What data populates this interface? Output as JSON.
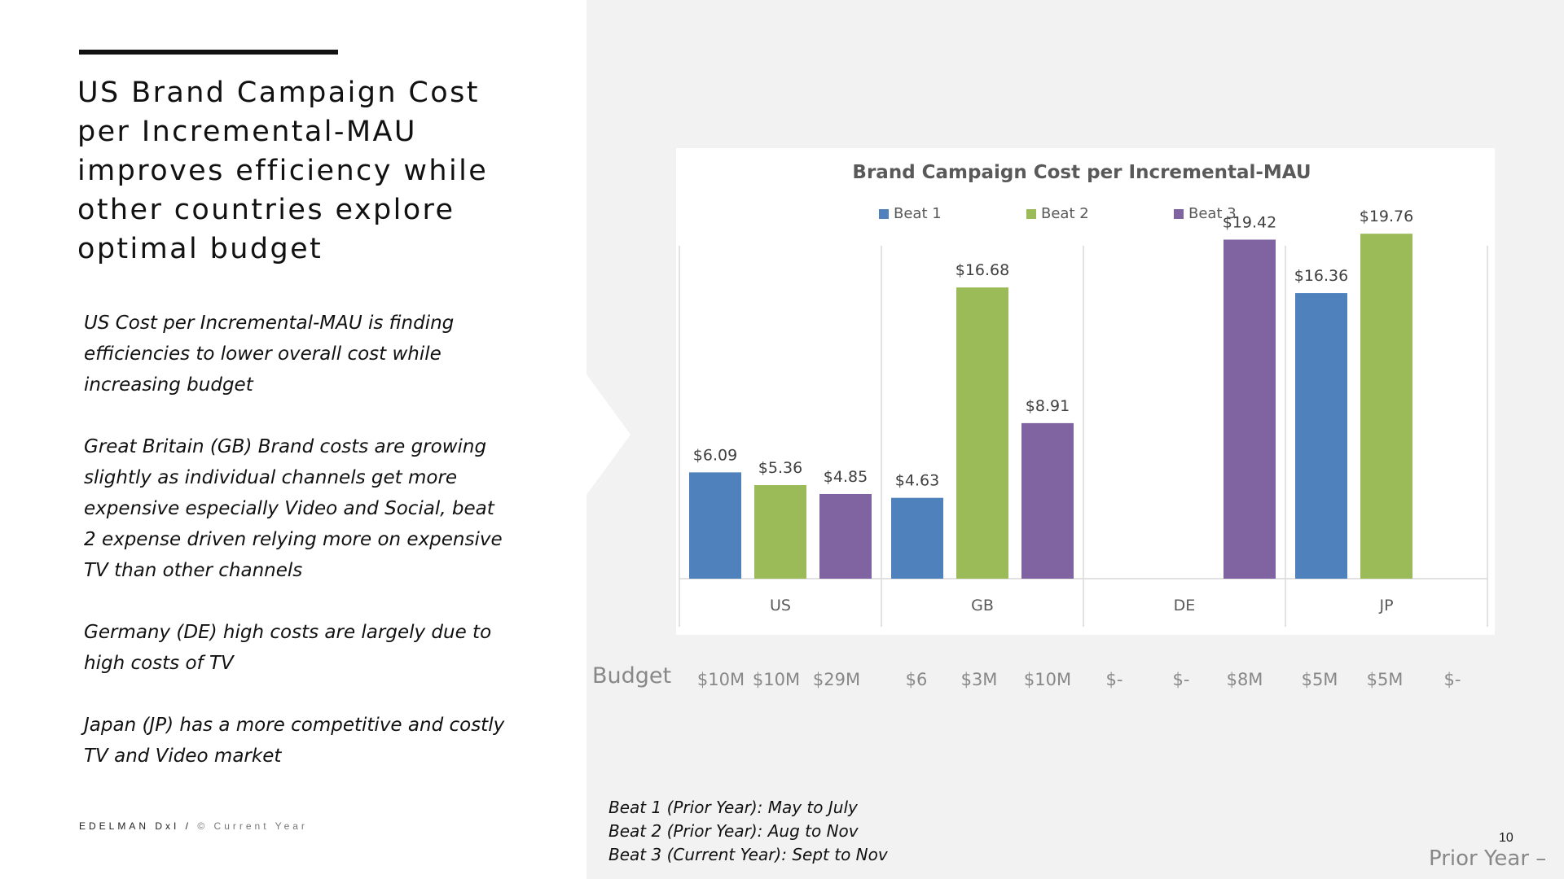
{
  "slide": {
    "headline": "US Brand Campaign Cost per Incremental-MAU improves efficiency while other countries explore optimal budget",
    "bullets": [
      "US Cost per Incremental-MAU is finding efficiencies to lower overall cost while increasing budget",
      "Great Britain (GB) Brand costs are growing slightly as individual channels get more expensive especially Video and Social, beat 2 expense driven relying more on expensive TV than other channels",
      "Germany (DE) high costs are largely due to high costs of TV",
      "Japan (JP) has a more competitive and costly TV and Video market"
    ],
    "footer_brand": "EDELMAN DxI /",
    "footer_copyright": "© Current Year",
    "page_number": "10",
    "prior_year": "Prior Year –"
  },
  "budget": {
    "label": "Budget",
    "values": [
      "$10M",
      "$10M",
      "$29M",
      "$6",
      "$3M",
      "$10M",
      "$-",
      "$-",
      "$8M",
      "$5M",
      "$5M",
      "$-"
    ]
  },
  "notes": [
    "Beat 1 (Prior Year): May to July",
    "Beat 2 (Prior Year): Aug to Nov",
    "Beat 3 (Current Year): Sept to Nov"
  ],
  "colors": {
    "beat1": "#4f81bd",
    "beat2": "#9bbb59",
    "beat3": "#8064a2"
  },
  "chart_data": {
    "type": "bar",
    "title": "Brand Campaign Cost per Incremental-MAU",
    "categories": [
      "US",
      "GB",
      "DE",
      "JP"
    ],
    "series": [
      {
        "name": "Beat 1",
        "values": [
          6.09,
          4.63,
          null,
          16.36
        ],
        "labels": [
          "$6.09",
          "$4.63",
          "",
          "$16.36"
        ]
      },
      {
        "name": "Beat 2",
        "values": [
          5.36,
          16.68,
          null,
          19.76
        ],
        "labels": [
          "$5.36",
          "$16.68",
          "",
          "$19.76"
        ]
      },
      {
        "name": "Beat 3",
        "values": [
          4.85,
          8.91,
          19.42,
          null
        ],
        "labels": [
          "$4.85",
          "$8.91",
          "$19.42",
          ""
        ]
      }
    ],
    "legend": "top",
    "grid": false,
    "ylim": [
      0,
      20
    ]
  }
}
